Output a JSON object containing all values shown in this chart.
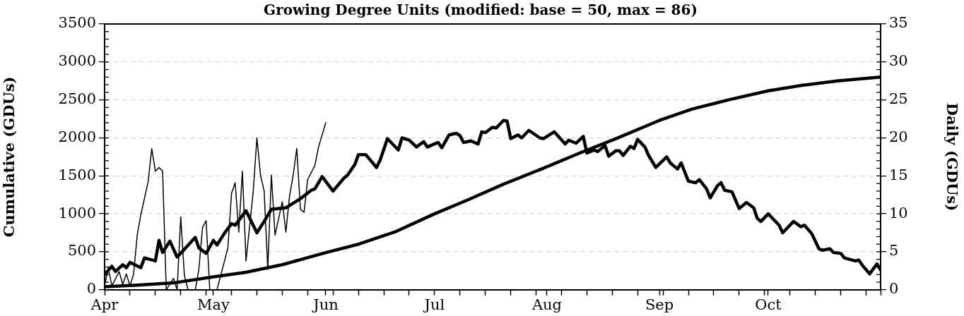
{
  "chart_data": {
    "type": "line",
    "title": "Growing Degree Units (modified: base = 50, max = 86)",
    "ylabel": "Cumulative (GDUs)",
    "y2label": "Daily (GDUs)",
    "xlim": [
      "--04-01",
      "--11-01"
    ],
    "xticks": [
      {
        "value": "--04-01",
        "label": "Apr"
      },
      {
        "value": "--05-01",
        "label": "May"
      },
      {
        "value": "--06-01",
        "label": "Jun"
      },
      {
        "value": "--07-01",
        "label": "Jul"
      },
      {
        "value": "--08-01",
        "label": "Aug"
      },
      {
        "value": "--09-01",
        "label": "Sep"
      },
      {
        "value": "--10-01",
        "label": "Oct"
      },
      {
        "value": "--11-01",
        "label": null
      },
      {
        "value": "--04-08",
        "label": null
      },
      {
        "value": "--04-15",
        "label": null
      },
      {
        "value": "--04-22",
        "label": null
      },
      {
        "value": "--04-29",
        "label": null
      },
      {
        "value": "--05-06",
        "label": null
      },
      {
        "value": "--05-13",
        "label": null
      },
      {
        "value": "--05-20",
        "label": null
      },
      {
        "value": "--05-27",
        "label": null
      },
      {
        "value": "--06-03",
        "label": null
      },
      {
        "value": "--06-10",
        "label": null
      },
      {
        "value": "--06-17",
        "label": null
      },
      {
        "value": "--06-24",
        "label": null
      },
      {
        "value": "--07-08",
        "label": null
      },
      {
        "value": "--07-15",
        "label": null
      },
      {
        "value": "--07-22",
        "label": null
      },
      {
        "value": "--07-29",
        "label": null
      },
      {
        "value": "--08-05",
        "label": null
      },
      {
        "value": "--08-12",
        "label": null
      },
      {
        "value": "--08-19",
        "label": null
      },
      {
        "value": "--08-26",
        "label": null
      },
      {
        "value": "--09-02",
        "label": null
      },
      {
        "value": "--09-09",
        "label": null
      },
      {
        "value": "--09-16",
        "label": null
      },
      {
        "value": "--09-23",
        "label": null
      },
      {
        "value": "--09-30",
        "label": null
      },
      {
        "value": "--10-07",
        "label": null
      },
      {
        "value": "--10-14",
        "label": null
      },
      {
        "value": "--10-21",
        "label": null
      },
      {
        "value": "--10-28",
        "label": null
      }
    ],
    "ylim": [
      0,
      3500
    ],
    "yticks": [
      0,
      500,
      1000,
      1500,
      2000,
      2500,
      3000,
      3500
    ],
    "y2lim": [
      0,
      35
    ],
    "y2ticks": [
      0,
      5,
      10,
      15,
      20,
      25,
      30,
      35
    ],
    "grid": "y",
    "legend": false,
    "marker": "none",
    "line_style": "solid",
    "series": [
      {
        "color": "#000000",
        "x": [
          "--04-01",
          "--04-10",
          "--04-20",
          "--05-01",
          "--05-10",
          "--05-20",
          "--06-01",
          "--06-10",
          "--06-20",
          "--07-01",
          "--07-10",
          "--07-20",
          "--08-01",
          "--08-10",
          "--08-20",
          "--09-01",
          "--09-10",
          "--09-20",
          "--10-01",
          "--10-10",
          "--10-20",
          "--11-01"
        ],
        "values": [
          40,
          60,
          90,
          170,
          230,
          330,
          490,
          600,
          760,
          1000,
          1180,
          1390,
          1620,
          1800,
          1990,
          2230,
          2380,
          2500,
          2620,
          2690,
          2750,
          2800
        ]
      },
      {
        "color": "#000000",
        "axis": "y2",
        "x": [
          "--04-01",
          "--04-03",
          "--04-04",
          "--04-06",
          "--04-07",
          "--04-08",
          "--04-11",
          "--04-12",
          "--04-15",
          "--04-16",
          "--04-17",
          "--04-19",
          "--04-21",
          "--04-26",
          "--04-27",
          "--04-29",
          "--05-01",
          "--05-02",
          "--05-04",
          "--05-06",
          "--05-07",
          "--05-10",
          "--05-13",
          "--05-15",
          "--05-17",
          "--05-21",
          "--05-25",
          "--05-28",
          "--05-29",
          "--05-31",
          "--06-03",
          "--06-06",
          "--06-07",
          "--06-09",
          "--06-10",
          "--06-12",
          "--06-15",
          "--06-16",
          "--06-18",
          "--06-21",
          "--06-22",
          "--06-24",
          "--06-26",
          "--06-28",
          "--06-29",
          "--07-02",
          "--07-03",
          "--07-05",
          "--07-07",
          "--07-08",
          "--07-09",
          "--07-11",
          "--07-13",
          "--07-14",
          "--07-15",
          "--07-17",
          "--07-18",
          "--07-20",
          "--07-21",
          "--07-22",
          "--07-24",
          "--07-25",
          "--07-27",
          "--07-30",
          "--07-31",
          "--08-03",
          "--08-06",
          "--08-07",
          "--08-09",
          "--08-11",
          "--08-12",
          "--08-14",
          "--08-15",
          "--08-17",
          "--08-18",
          "--08-20",
          "--08-21",
          "--08-22",
          "--08-24",
          "--08-25",
          "--08-26",
          "--08-28",
          "--08-29",
          "--08-31",
          "--09-03",
          "--09-04",
          "--09-06",
          "--09-07",
          "--09-09",
          "--09-11",
          "--09-12",
          "--09-14",
          "--09-15",
          "--09-17",
          "--09-18",
          "--09-19",
          "--09-21",
          "--09-23",
          "--09-25",
          "--09-27",
          "--09-28",
          "--09-29",
          "--10-01",
          "--10-04",
          "--10-05",
          "--10-08",
          "--10-10",
          "--10-11",
          "--10-13",
          "--10-15",
          "--10-16",
          "--10-18",
          "--10-19",
          "--10-21",
          "--10-22",
          "--10-25",
          "--10-26",
          "--10-27",
          "--10-29",
          "--10-31",
          "--11-01"
        ],
        "values": [
          2.0,
          3.1,
          2.4,
          3.3,
          2.9,
          3.6,
          2.9,
          4.2,
          3.8,
          6.5,
          4.9,
          6.4,
          4.3,
          6.9,
          5.5,
          4.8,
          6.5,
          5.9,
          7.4,
          8.7,
          8.5,
          10.4,
          7.5,
          9.0,
          10.6,
          10.8,
          12.0,
          13.1,
          13.3,
          14.9,
          13.0,
          14.7,
          15.1,
          16.5,
          17.8,
          17.8,
          16.1,
          17.1,
          19.9,
          18.4,
          20.0,
          19.7,
          18.8,
          19.5,
          18.8,
          19.4,
          18.7,
          20.4,
          20.6,
          20.3,
          19.4,
          19.6,
          19.2,
          20.8,
          20.7,
          21.4,
          21.3,
          22.3,
          22.2,
          19.9,
          20.4,
          20.0,
          21.0,
          20.0,
          19.9,
          20.8,
          19.2,
          19.7,
          19.3,
          20.2,
          18.0,
          18.4,
          18.2,
          19.0,
          17.6,
          18.3,
          18.3,
          17.7,
          18.9,
          18.6,
          19.8,
          18.8,
          17.7,
          16.1,
          17.5,
          16.7,
          15.9,
          16.7,
          14.3,
          14.1,
          14.5,
          13.3,
          12.1,
          13.7,
          14.1,
          13.1,
          12.9,
          10.7,
          11.5,
          10.8,
          9.4,
          9.0,
          10.0,
          8.5,
          7.5,
          9.0,
          8.3,
          8.5,
          7.4,
          5.4,
          5.2,
          5.4,
          4.9,
          4.8,
          4.2,
          3.8,
          3.9,
          3.2,
          2.1,
          3.4,
          2.6
        ]
      },
      {
        "color": "#000000",
        "axis": "y2",
        "x": [
          "--04-01",
          "--04-02",
          "--04-03",
          "--04-05",
          "--04-06",
          "--04-07",
          "--04-08",
          "--04-09",
          "--04-10",
          "--04-11",
          "--04-13",
          "--04-14",
          "--04-15",
          "--04-16",
          "--04-17",
          "--04-18",
          "--04-20",
          "--04-21",
          "--04-22",
          "--04-23",
          "--04-24",
          "--04-26",
          "--04-27",
          "--04-28",
          "--04-29",
          "--04-30",
          "--05-02",
          "--05-05",
          "--05-06",
          "--05-07",
          "--05-08",
          "--05-09",
          "--05-10",
          "--05-12",
          "--05-13",
          "--05-14",
          "--05-15",
          "--05-16",
          "--05-17",
          "--05-18",
          "--05-20",
          "--05-21",
          "--05-22",
          "--05-23",
          "--05-24",
          "--05-25",
          "--05-26",
          "--05-27",
          "--05-29",
          "--05-30",
          "--06-01"
        ],
        "values": [
          0.5,
          2.9,
          0.5,
          2.4,
          0.7,
          2.1,
          0.5,
          2.1,
          7.2,
          9.9,
          14.2,
          18.6,
          15.6,
          16.1,
          15.6,
          0,
          1.5,
          0,
          9.6,
          1.9,
          0,
          0,
          2.7,
          8.2,
          9.1,
          0,
          0,
          5.5,
          12.7,
          14.1,
          7.6,
          15.6,
          3.8,
          13.0,
          20.0,
          15.1,
          13.0,
          2.7,
          15.1,
          7.2,
          11.6,
          7.6,
          12.3,
          15.1,
          18.6,
          10.6,
          10.2,
          14.5,
          16.4,
          18.8,
          22.0
        ]
      }
    ]
  }
}
